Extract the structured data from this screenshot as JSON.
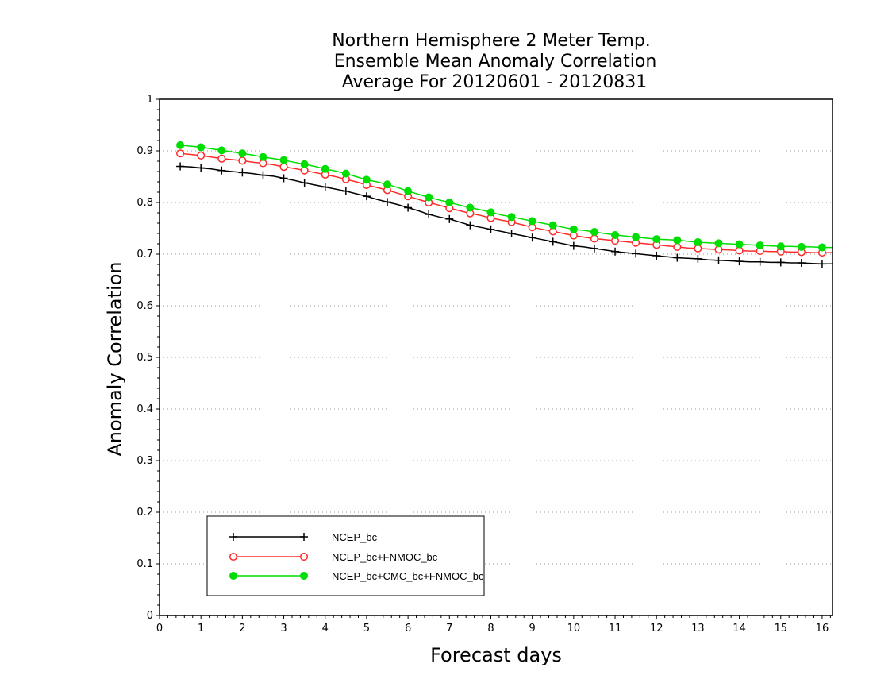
{
  "chart_data": {
    "type": "line",
    "title": [
      "Northern Hemisphere 2 Meter Temp.",
      "Ensemble Mean Anomaly Correlation",
      "Average For 20120601 - 20120831"
    ],
    "xlabel": "Forecast days",
    "ylabel": "Anomaly Correlation",
    "xlim": [
      0,
      16.25
    ],
    "ylim": [
      0,
      1
    ],
    "xticks": [
      0,
      1,
      2,
      3,
      4,
      5,
      6,
      7,
      8,
      9,
      10,
      11,
      12,
      13,
      14,
      15,
      16
    ],
    "xtick_labels": [
      "0",
      "1",
      "2",
      "3",
      "4",
      "5",
      "6",
      "7",
      "8",
      "9",
      "10",
      "11",
      "12",
      "13",
      "14",
      "15",
      "16"
    ],
    "yticks": [
      0,
      0.1,
      0.2,
      0.3,
      0.4,
      0.5,
      0.6,
      0.7,
      0.8,
      0.9,
      1
    ],
    "ytick_labels": [
      "0",
      "0.1",
      "0.2",
      "0.3",
      "0.4",
      "0.5",
      "0.6",
      "0.7",
      "0.8",
      "0.9",
      "1"
    ],
    "grid": "horizontal-dotted",
    "legend_position": "bottom-left",
    "x": [
      0.5,
      0.75,
      1,
      1.25,
      1.5,
      1.75,
      2,
      2.25,
      2.5,
      2.75,
      3,
      3.25,
      3.5,
      3.75,
      4,
      4.25,
      4.5,
      4.75,
      5,
      5.25,
      5.5,
      5.75,
      6,
      6.25,
      6.5,
      6.75,
      7,
      7.25,
      7.5,
      7.75,
      8,
      8.25,
      8.5,
      8.75,
      9,
      9.25,
      9.5,
      9.75,
      10,
      10.25,
      10.5,
      10.75,
      11,
      11.25,
      11.5,
      11.75,
      12,
      12.25,
      12.5,
      12.75,
      13,
      13.25,
      13.5,
      13.75,
      14,
      14.25,
      14.5,
      14.75,
      15,
      15.25,
      15.5,
      15.75,
      16,
      16.25
    ],
    "series": [
      {
        "name": "NCEP_bc",
        "color": "#000000",
        "marker": "plus",
        "values": [
          0.87,
          0.869,
          0.867,
          0.865,
          0.862,
          0.86,
          0.858,
          0.856,
          0.853,
          0.851,
          0.847,
          0.843,
          0.838,
          0.834,
          0.83,
          0.826,
          0.822,
          0.817,
          0.812,
          0.806,
          0.801,
          0.796,
          0.79,
          0.784,
          0.777,
          0.772,
          0.768,
          0.762,
          0.756,
          0.752,
          0.748,
          0.744,
          0.74,
          0.736,
          0.732,
          0.728,
          0.724,
          0.72,
          0.716,
          0.714,
          0.711,
          0.708,
          0.705,
          0.703,
          0.701,
          0.699,
          0.697,
          0.695,
          0.693,
          0.692,
          0.691,
          0.689,
          0.688,
          0.687,
          0.686,
          0.685,
          0.685,
          0.684,
          0.684,
          0.683,
          0.683,
          0.682,
          0.681,
          0.681
        ]
      },
      {
        "name": "NCEP_bc+FNMOC_bc",
        "color": "#ff2a2a",
        "marker": "open-circle",
        "values": [
          0.895,
          0.893,
          0.891,
          0.888,
          0.885,
          0.883,
          0.881,
          0.878,
          0.876,
          0.873,
          0.869,
          0.866,
          0.862,
          0.858,
          0.854,
          0.85,
          0.845,
          0.84,
          0.834,
          0.829,
          0.824,
          0.818,
          0.812,
          0.806,
          0.8,
          0.795,
          0.789,
          0.784,
          0.779,
          0.775,
          0.77,
          0.766,
          0.762,
          0.757,
          0.752,
          0.748,
          0.744,
          0.74,
          0.736,
          0.733,
          0.73,
          0.728,
          0.726,
          0.724,
          0.722,
          0.72,
          0.718,
          0.716,
          0.714,
          0.712,
          0.711,
          0.71,
          0.709,
          0.708,
          0.707,
          0.706,
          0.706,
          0.705,
          0.705,
          0.704,
          0.704,
          0.703,
          0.703,
          0.703
        ]
      },
      {
        "name": "NCEP_bc+CMC_bc+FNMOC_bc",
        "color": "#00dd00",
        "marker": "filled-circle",
        "values": [
          0.911,
          0.909,
          0.907,
          0.904,
          0.901,
          0.898,
          0.895,
          0.892,
          0.888,
          0.885,
          0.882,
          0.878,
          0.874,
          0.87,
          0.865,
          0.861,
          0.856,
          0.85,
          0.844,
          0.84,
          0.835,
          0.829,
          0.822,
          0.816,
          0.81,
          0.805,
          0.8,
          0.795,
          0.79,
          0.786,
          0.781,
          0.776,
          0.772,
          0.768,
          0.764,
          0.76,
          0.756,
          0.752,
          0.748,
          0.746,
          0.743,
          0.74,
          0.737,
          0.735,
          0.733,
          0.731,
          0.729,
          0.728,
          0.727,
          0.725,
          0.723,
          0.722,
          0.721,
          0.72,
          0.719,
          0.718,
          0.717,
          0.716,
          0.715,
          0.715,
          0.714,
          0.714,
          0.713,
          0.713
        ]
      }
    ]
  }
}
